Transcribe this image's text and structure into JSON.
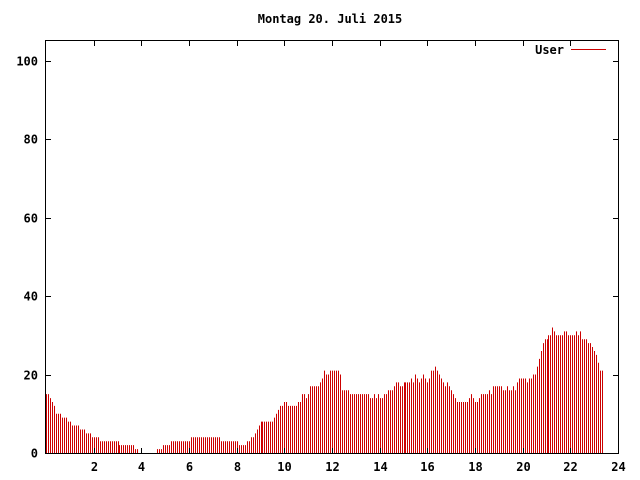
{
  "chart_data": {
    "type": "bar",
    "title": "Montag 20. Juli 2015",
    "xlabel": "",
    "ylabel": "",
    "xlim": [
      0,
      24
    ],
    "ylim": [
      0,
      105
    ],
    "x_ticks": [
      2,
      4,
      6,
      8,
      10,
      12,
      14,
      16,
      18,
      20,
      22,
      24
    ],
    "y_ticks": [
      0,
      20,
      40,
      60,
      80,
      100
    ],
    "grid": false,
    "legend_position": "top-right",
    "series": [
      {
        "name": "User",
        "color": "#cc0000",
        "start_hour": 0,
        "step_minutes": 5,
        "values": [
          15,
          15,
          14,
          13,
          12,
          10,
          10,
          10,
          9,
          9,
          9,
          8,
          8,
          7,
          7,
          7,
          7,
          6,
          6,
          6,
          5,
          5,
          5,
          4,
          4,
          4,
          4,
          3,
          3,
          3,
          3,
          3,
          3,
          3,
          3,
          3,
          3,
          2,
          2,
          2,
          2,
          2,
          2,
          2,
          2,
          1,
          1,
          0,
          0,
          0,
          0,
          0,
          0,
          0,
          0,
          0,
          1,
          1,
          1,
          2,
          2,
          2,
          2,
          3,
          3,
          3,
          3,
          3,
          3,
          3,
          3,
          3,
          3,
          4,
          4,
          4,
          4,
          4,
          4,
          4,
          4,
          4,
          4,
          4,
          4,
          4,
          4,
          4,
          3,
          3,
          3,
          3,
          3,
          3,
          3,
          3,
          3,
          2,
          2,
          2,
          2,
          3,
          3,
          4,
          4,
          5,
          6,
          7,
          8,
          8,
          8,
          8,
          8,
          8,
          8,
          9,
          10,
          11,
          12,
          12,
          13,
          13,
          12,
          12,
          12,
          12,
          12,
          13,
          13,
          15,
          15,
          14,
          15,
          17,
          17,
          17,
          17,
          17,
          18,
          19,
          21,
          20,
          20,
          21,
          21,
          21,
          21,
          21,
          20,
          16,
          16,
          16,
          16,
          15,
          15,
          15,
          15,
          15,
          15,
          15,
          15,
          15,
          15,
          14,
          14,
          15,
          14,
          15,
          14,
          14,
          15,
          15,
          16,
          16,
          16,
          17,
          18,
          18,
          17,
          17,
          18,
          18,
          18,
          18,
          19,
          18,
          20,
          19,
          18,
          19,
          20,
          19,
          18,
          19,
          21,
          21,
          22,
          21,
          20,
          19,
          18,
          17,
          18,
          17,
          16,
          15,
          14,
          13,
          13,
          13,
          13,
          13,
          13,
          14,
          15,
          14,
          13,
          13,
          14,
          15,
          15,
          15,
          15,
          16,
          15,
          17,
          17,
          17,
          17,
          17,
          16,
          16,
          17,
          16,
          16,
          17,
          16,
          18,
          19,
          19,
          19,
          19,
          18,
          19,
          19,
          20,
          20,
          22,
          24,
          26,
          28,
          29,
          29,
          30,
          30,
          32,
          31,
          30,
          30,
          30,
          30,
          31,
          31,
          30,
          30,
          30,
          30,
          31,
          30,
          31,
          29,
          29,
          29,
          28,
          28,
          27,
          26,
          25,
          23,
          21,
          21
        ]
      }
    ]
  }
}
